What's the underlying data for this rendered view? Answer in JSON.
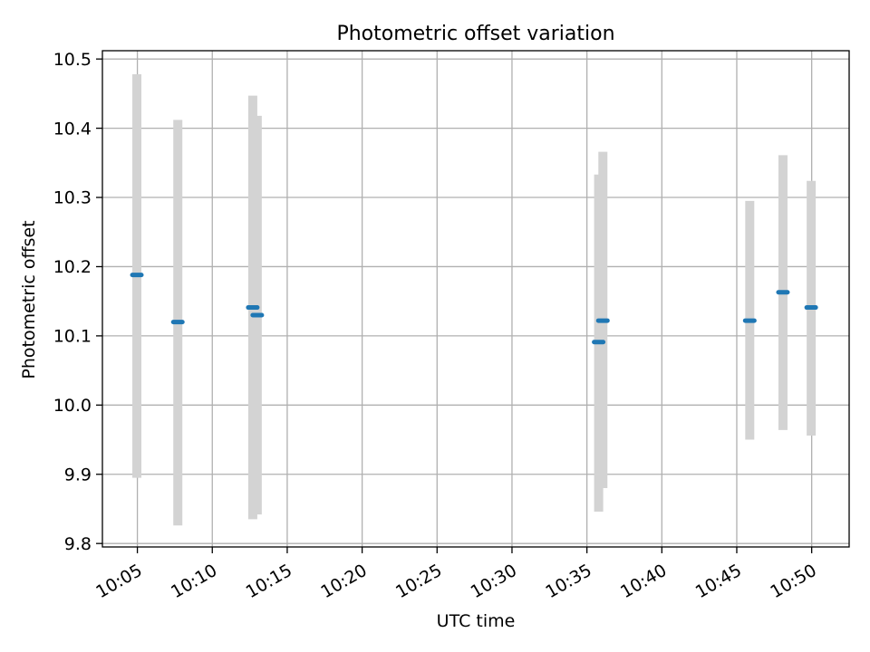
{
  "chart_data": {
    "type": "scatter",
    "title": "Photometric offset variation",
    "xlabel": "UTC time",
    "ylabel": "Photometric offset",
    "x_ticks": [
      "10:05",
      "10:10",
      "10:15",
      "10:20",
      "10:25",
      "10:30",
      "10:35",
      "10:40",
      "10:45",
      "10:50"
    ],
    "y_ticks": [
      "9.8",
      "9.9",
      "10.0",
      "10.1",
      "10.2",
      "10.3",
      "10.4",
      "10.5"
    ],
    "xlim": [
      "10:02:40",
      "10:52:30"
    ],
    "ylim": [
      9.795,
      10.512
    ],
    "grid": true,
    "colors": {
      "points": "#1f77b4",
      "errorbars": "#d3d3d3",
      "grid": "#b0b0b0"
    },
    "series": [
      {
        "points": [
          {
            "time": "10:04:58",
            "value": 10.188,
            "err_low": 9.895,
            "err_high": 10.478
          },
          {
            "time": "10:07:42",
            "value": 10.12,
            "err_low": 9.826,
            "err_high": 10.412
          },
          {
            "time": "10:12:42",
            "value": 10.141,
            "err_low": 9.835,
            "err_high": 10.447
          },
          {
            "time": "10:13:00",
            "value": 10.13,
            "err_low": 9.842,
            "err_high": 10.418
          },
          {
            "time": "10:35:47",
            "value": 10.091,
            "err_low": 9.846,
            "err_high": 10.333
          },
          {
            "time": "10:36:04",
            "value": 10.122,
            "err_low": 9.88,
            "err_high": 10.366
          },
          {
            "time": "10:45:52",
            "value": 10.122,
            "err_low": 9.95,
            "err_high": 10.295
          },
          {
            "time": "10:48:05",
            "value": 10.163,
            "err_low": 9.964,
            "err_high": 10.361
          },
          {
            "time": "10:49:58",
            "value": 10.141,
            "err_low": 9.956,
            "err_high": 10.324
          }
        ]
      }
    ]
  }
}
